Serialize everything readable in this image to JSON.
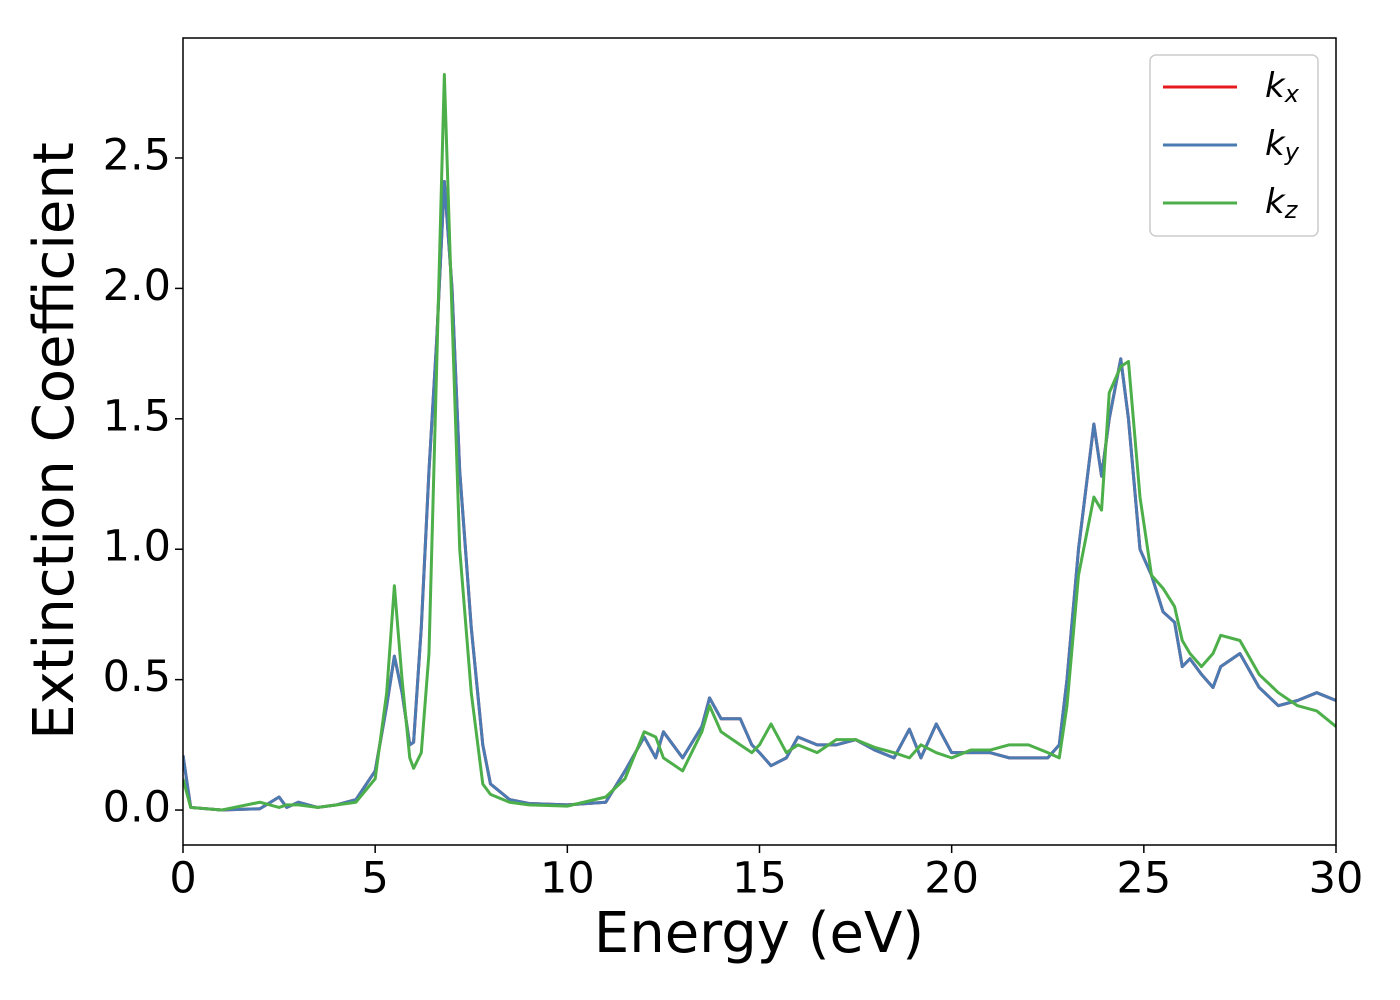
{
  "chart_data": {
    "type": "line",
    "xlabel": "Energy (eV)",
    "ylabel": "Extinction Coefficient",
    "x": [
      0,
      0.2,
      1,
      2,
      2.5,
      2.7,
      3,
      3.5,
      4,
      4.5,
      5,
      5.3,
      5.5,
      5.7,
      5.9,
      6.0,
      6.2,
      6.4,
      6.6,
      6.8,
      7.0,
      7.2,
      7.5,
      7.8,
      8.0,
      8.5,
      9,
      10,
      11,
      11.5,
      12,
      12.3,
      12.5,
      13,
      13.5,
      13.7,
      14,
      14.5,
      14.8,
      15,
      15.3,
      15.7,
      16,
      16.5,
      17,
      17.5,
      18,
      18.5,
      18.9,
      19.2,
      19.6,
      20,
      20.5,
      21,
      21.5,
      22,
      22.5,
      22.8,
      23,
      23.3,
      23.7,
      23.9,
      24.1,
      24.4,
      24.6,
      24.9,
      25.2,
      25.5,
      25.8,
      26,
      26.2,
      26.5,
      26.8,
      27,
      27.5,
      28,
      28.5,
      29,
      29.5,
      30
    ],
    "series": [
      {
        "name": "kx",
        "color": "#e41a1c",
        "values": [
          0.21,
          0.01,
          0,
          0.005,
          0.05,
          0.01,
          0.03,
          0.01,
          0.02,
          0.04,
          0.15,
          0.4,
          0.59,
          0.45,
          0.25,
          0.26,
          0.7,
          1.3,
          1.8,
          2.41,
          2.0,
          1.3,
          0.7,
          0.25,
          0.1,
          0.04,
          0.025,
          0.02,
          0.03,
          0.15,
          0.28,
          0.2,
          0.3,
          0.2,
          0.32,
          0.43,
          0.35,
          0.35,
          0.25,
          0.22,
          0.17,
          0.2,
          0.28,
          0.25,
          0.25,
          0.27,
          0.23,
          0.2,
          0.31,
          0.2,
          0.33,
          0.22,
          0.22,
          0.22,
          0.2,
          0.2,
          0.2,
          0.25,
          0.5,
          1.0,
          1.48,
          1.28,
          1.5,
          1.73,
          1.5,
          1.0,
          0.9,
          0.76,
          0.72,
          0.55,
          0.58,
          0.52,
          0.47,
          0.55,
          0.6,
          0.47,
          0.4,
          0.42,
          0.45,
          0.42
        ]
      },
      {
        "name": "ky",
        "color": "#4a7bb3",
        "values": [
          0.21,
          0.01,
          0,
          0.005,
          0.05,
          0.01,
          0.03,
          0.01,
          0.02,
          0.04,
          0.15,
          0.4,
          0.59,
          0.45,
          0.25,
          0.26,
          0.7,
          1.3,
          1.8,
          2.41,
          2.0,
          1.3,
          0.7,
          0.25,
          0.1,
          0.04,
          0.025,
          0.02,
          0.03,
          0.15,
          0.28,
          0.2,
          0.3,
          0.2,
          0.32,
          0.43,
          0.35,
          0.35,
          0.25,
          0.22,
          0.17,
          0.2,
          0.28,
          0.25,
          0.25,
          0.27,
          0.23,
          0.2,
          0.31,
          0.2,
          0.33,
          0.22,
          0.22,
          0.22,
          0.2,
          0.2,
          0.2,
          0.25,
          0.5,
          1.0,
          1.48,
          1.28,
          1.5,
          1.73,
          1.5,
          1.0,
          0.9,
          0.76,
          0.72,
          0.55,
          0.58,
          0.52,
          0.47,
          0.55,
          0.6,
          0.47,
          0.4,
          0.42,
          0.45,
          0.42
        ]
      },
      {
        "name": "kz",
        "color": "#4daf4a",
        "values": [
          0.12,
          0.01,
          0,
          0.03,
          0.01,
          0.02,
          0.02,
          0.01,
          0.02,
          0.03,
          0.12,
          0.45,
          0.86,
          0.5,
          0.2,
          0.16,
          0.22,
          0.6,
          1.7,
          2.82,
          1.9,
          1.0,
          0.45,
          0.1,
          0.06,
          0.03,
          0.02,
          0.015,
          0.05,
          0.12,
          0.3,
          0.28,
          0.2,
          0.15,
          0.3,
          0.4,
          0.3,
          0.25,
          0.22,
          0.25,
          0.33,
          0.22,
          0.25,
          0.22,
          0.27,
          0.27,
          0.24,
          0.22,
          0.2,
          0.25,
          0.22,
          0.2,
          0.23,
          0.23,
          0.25,
          0.25,
          0.22,
          0.2,
          0.4,
          0.9,
          1.2,
          1.15,
          1.6,
          1.7,
          1.72,
          1.2,
          0.9,
          0.85,
          0.78,
          0.65,
          0.6,
          0.55,
          0.6,
          0.67,
          0.65,
          0.52,
          0.45,
          0.4,
          0.38,
          0.32
        ]
      }
    ],
    "xlim": [
      0,
      30
    ],
    "xticks": [
      0,
      5,
      10,
      15,
      20,
      25,
      30
    ],
    "ylim": [
      -0.134,
      2.96
    ],
    "yticks": [
      {
        "value": 0,
        "label": "0.0"
      },
      0.5,
      {
        "value": 1,
        "label": "1.0"
      },
      1.5,
      {
        "value": 2,
        "label": "2.0"
      },
      2.5
    ],
    "legend": "upper right"
  }
}
